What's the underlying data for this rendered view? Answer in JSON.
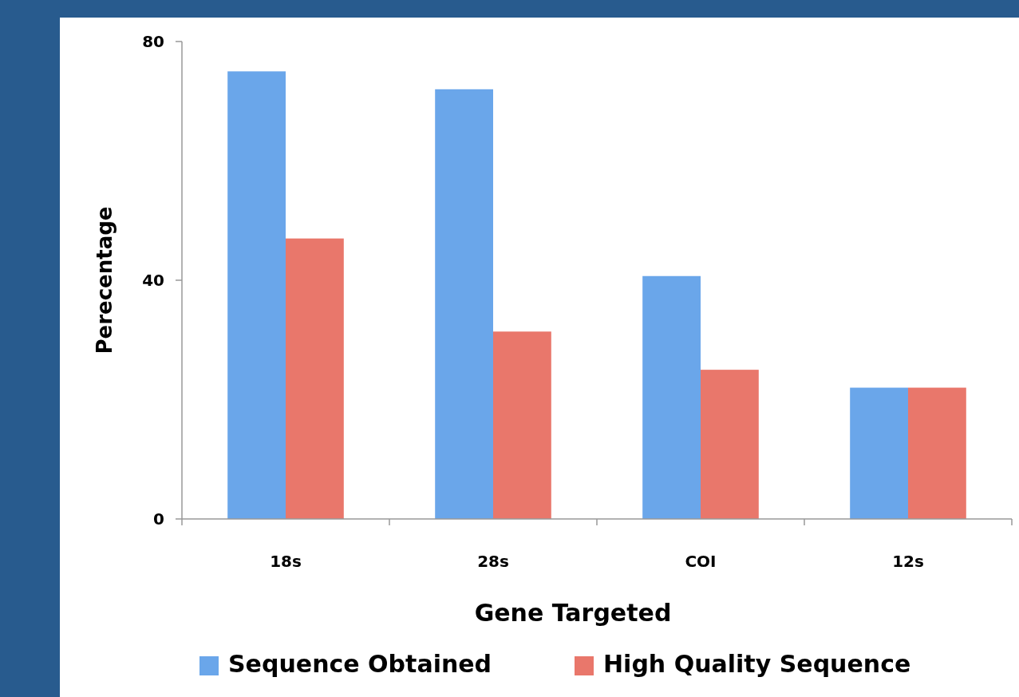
{
  "chart_data": {
    "type": "bar",
    "xlabel": "Gene Targeted",
    "ylabel": "Perecentage",
    "categories": [
      "18s",
      "28s",
      "COI",
      "12s"
    ],
    "series": [
      {
        "name": "Sequence Obtained",
        "color": "#6aa6ea",
        "values": [
          75,
          72,
          40.7,
          22
        ]
      },
      {
        "name": "High Quality Sequence",
        "color": "#e9776b",
        "values": [
          47,
          31.4,
          25,
          22
        ]
      }
    ],
    "ylim": [
      0,
      80
    ],
    "yticks": [
      0,
      40,
      80
    ],
    "legend": "bottom",
    "grid": false
  }
}
